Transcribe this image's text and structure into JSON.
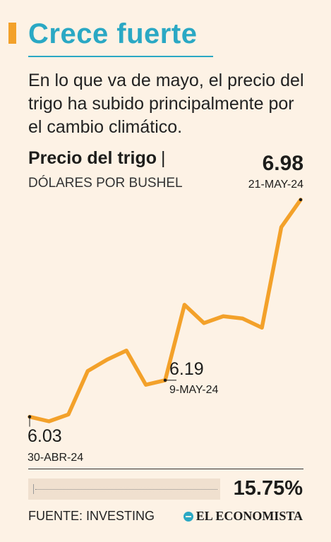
{
  "header": {
    "headline": "Crece fuerte",
    "lede": "En lo que va de mayo, el precio del trigo ha subido principalmente por el cambio climático."
  },
  "chart_data": {
    "type": "line",
    "title": "Precio del trigo",
    "title_separator": "|",
    "unit_label": "DÓLARES POR BUSHEL",
    "color": "#f3a12a",
    "values": [
      6.03,
      6.01,
      6.04,
      6.23,
      6.28,
      6.32,
      6.17,
      6.19,
      6.52,
      6.44,
      6.47,
      6.46,
      6.42,
      6.86,
      6.98
    ],
    "ylim": [
      5.97,
      7.02
    ],
    "grid": false,
    "annotations": [
      {
        "index": 0,
        "value": "6.03",
        "date": "30-ABR-24"
      },
      {
        "index": 7,
        "value": "6.19",
        "date": "9-MAY-24"
      },
      {
        "index": 14,
        "value": "6.98",
        "date": "21-MAY-24"
      }
    ],
    "change": "15.75%"
  },
  "footer": {
    "source": "FUENTE: INVESTING",
    "brand": "EL ECONOMISTA",
    "brand_icon": "el-economista-logo-icon"
  }
}
